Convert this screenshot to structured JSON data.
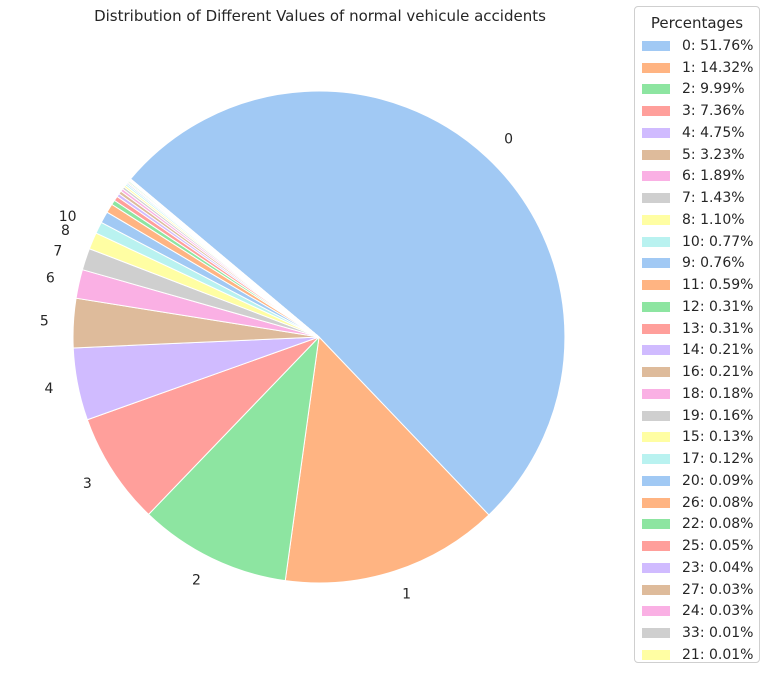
{
  "chart_data": {
    "type": "pie",
    "title": "Distribution of Different Values of normal vehicule accidents",
    "legend_title": "Percentages",
    "legend_placement": "right",
    "start_angle_deg": 140,
    "direction": "clockwise",
    "slices": [
      {
        "label": "0",
        "value": 51.76,
        "legend": "0: 51.76%",
        "color": "#a1c9f4",
        "show_label": true
      },
      {
        "label": "1",
        "value": 14.32,
        "legend": "1: 14.32%",
        "color": "#ffb482",
        "show_label": true
      },
      {
        "label": "2",
        "value": 9.99,
        "legend": "2: 9.99%",
        "color": "#8de5a1",
        "show_label": true
      },
      {
        "label": "3",
        "value": 7.36,
        "legend": "3: 7.36%",
        "color": "#ff9f9b",
        "show_label": true
      },
      {
        "label": "4",
        "value": 4.75,
        "legend": "4: 4.75%",
        "color": "#d0bbff",
        "show_label": true
      },
      {
        "label": "5",
        "value": 3.23,
        "legend": "5: 3.23%",
        "color": "#debb9b",
        "show_label": true
      },
      {
        "label": "6",
        "value": 1.89,
        "legend": "6: 1.89%",
        "color": "#fab0e4",
        "show_label": true
      },
      {
        "label": "7",
        "value": 1.43,
        "legend": "7: 1.43%",
        "color": "#cfcfcf",
        "show_label": true
      },
      {
        "label": "8",
        "value": 1.1,
        "legend": "8: 1.10%",
        "color": "#fffea3",
        "show_label": true
      },
      {
        "label": "10",
        "value": 0.77,
        "legend": "10: 0.77%",
        "color": "#b9f2f0",
        "show_label": true
      },
      {
        "label": "9",
        "value": 0.76,
        "legend": "9: 0.76%",
        "color": "#a1c9f4",
        "show_label": false
      },
      {
        "label": "11",
        "value": 0.59,
        "legend": "11: 0.59%",
        "color": "#ffb482",
        "show_label": false
      },
      {
        "label": "12",
        "value": 0.31,
        "legend": "12: 0.31%",
        "color": "#8de5a1",
        "show_label": false
      },
      {
        "label": "13",
        "value": 0.31,
        "legend": "13: 0.31%",
        "color": "#ff9f9b",
        "show_label": false
      },
      {
        "label": "14",
        "value": 0.21,
        "legend": "14: 0.21%",
        "color": "#d0bbff",
        "show_label": false
      },
      {
        "label": "16",
        "value": 0.21,
        "legend": "16: 0.21%",
        "color": "#debb9b",
        "show_label": false
      },
      {
        "label": "18",
        "value": 0.18,
        "legend": "18: 0.18%",
        "color": "#fab0e4",
        "show_label": false
      },
      {
        "label": "19",
        "value": 0.16,
        "legend": "19: 0.16%",
        "color": "#cfcfcf",
        "show_label": false
      },
      {
        "label": "15",
        "value": 0.13,
        "legend": "15: 0.13%",
        "color": "#fffea3",
        "show_label": false
      },
      {
        "label": "17",
        "value": 0.12,
        "legend": "17: 0.12%",
        "color": "#b9f2f0",
        "show_label": false
      },
      {
        "label": "20",
        "value": 0.09,
        "legend": "20: 0.09%",
        "color": "#a1c9f4",
        "show_label": false
      },
      {
        "label": "26",
        "value": 0.08,
        "legend": "26: 0.08%",
        "color": "#ffb482",
        "show_label": false
      },
      {
        "label": "22",
        "value": 0.08,
        "legend": "22: 0.08%",
        "color": "#8de5a1",
        "show_label": false
      },
      {
        "label": "25",
        "value": 0.05,
        "legend": "25: 0.05%",
        "color": "#ff9f9b",
        "show_label": false
      },
      {
        "label": "23",
        "value": 0.04,
        "legend": "23: 0.04%",
        "color": "#d0bbff",
        "show_label": false
      },
      {
        "label": "27",
        "value": 0.03,
        "legend": "27: 0.03%",
        "color": "#debb9b",
        "show_label": false
      },
      {
        "label": "24",
        "value": 0.03,
        "legend": "24: 0.03%",
        "color": "#fab0e4",
        "show_label": false
      },
      {
        "label": "33",
        "value": 0.01,
        "legend": "33: 0.01%",
        "color": "#cfcfcf",
        "show_label": false
      },
      {
        "label": "21",
        "value": 0.01,
        "legend": "21: 0.01%",
        "color": "#fffea3",
        "show_label": false
      }
    ]
  }
}
